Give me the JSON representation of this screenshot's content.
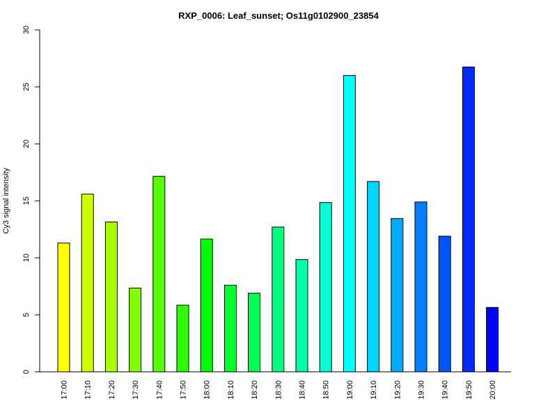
{
  "chart_data": {
    "type": "bar",
    "title": "RXP_0006: Leaf_sunset; Os11g0102900_23854",
    "xlabel": "",
    "ylabel": "Cy3 signal intensity",
    "ylim": [
      0,
      30
    ],
    "yticks": [
      0,
      5,
      10,
      15,
      20,
      25,
      30
    ],
    "grid": false,
    "categories": [
      "17:00",
      "17:10",
      "17:20",
      "17:30",
      "17:40",
      "17:50",
      "18:00",
      "18:10",
      "18:20",
      "18:30",
      "18:40",
      "18:50",
      "19:00",
      "19:10",
      "19:20",
      "19:30",
      "19:40",
      "19:50",
      "20:00"
    ],
    "values": [
      11.3,
      15.6,
      13.15,
      7.35,
      17.15,
      5.85,
      11.65,
      7.6,
      6.9,
      12.7,
      9.85,
      14.85,
      26.0,
      16.7,
      13.45,
      14.9,
      11.9,
      26.75,
      5.65
    ],
    "colors": [
      "#ffff00",
      "#ccff00",
      "#aaff00",
      "#80ff00",
      "#55ff00",
      "#2bff00",
      "#00ff00",
      "#00ff2b",
      "#00ff55",
      "#00ff80",
      "#00ffaa",
      "#00ffd5",
      "#00ffff",
      "#00d5ff",
      "#00aaff",
      "#0080ff",
      "#0055ff",
      "#002bff",
      "#0000ff"
    ]
  }
}
